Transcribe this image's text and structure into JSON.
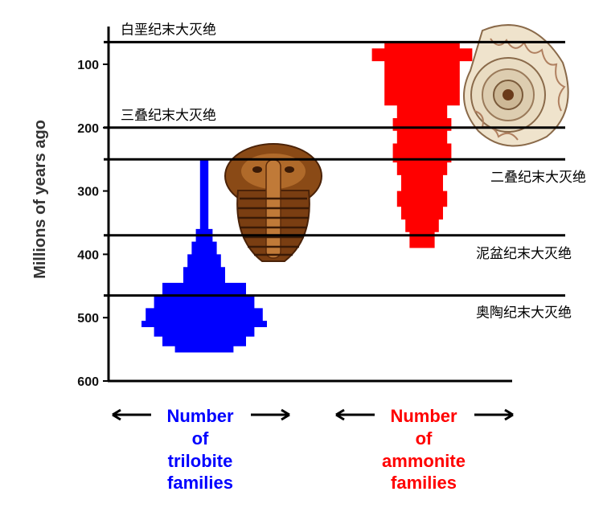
{
  "chart_data": {
    "type": "area",
    "ylabel": "Millions of years ago",
    "y_axis": {
      "ticks": [
        100,
        200,
        300,
        400,
        500,
        600
      ],
      "range": [
        50,
        600
      ],
      "direction": "down"
    },
    "extinction_events": [
      {
        "label": "白垩纪末大灭绝",
        "age_ma": 65
      },
      {
        "label": "三叠纪末大灭绝",
        "age_ma": 200
      },
      {
        "label": "二叠纪末大灭绝",
        "age_ma": 250
      },
      {
        "label": "泥盆纪末大灭绝",
        "age_ma": 370
      },
      {
        "label": "奥陶纪末大灭绝",
        "age_ma": 465
      }
    ],
    "series": [
      {
        "name": "trilobite",
        "color": "#0000ff",
        "caption": [
          "Number",
          "of",
          "trilobite",
          "families"
        ],
        "profile": [
          [
            250,
            1
          ],
          [
            340,
            1
          ],
          [
            360,
            2
          ],
          [
            380,
            3
          ],
          [
            400,
            4
          ],
          [
            420,
            5
          ],
          [
            445,
            10
          ],
          [
            465,
            12
          ],
          [
            485,
            14
          ],
          [
            505,
            15
          ],
          [
            515,
            12
          ],
          [
            530,
            10
          ],
          [
            545,
            7
          ],
          [
            555,
            0
          ]
        ]
      },
      {
        "name": "ammonite",
        "color": "#ff0000",
        "caption": [
          "Number",
          "of",
          "ammonite",
          "families"
        ],
        "profile": [
          [
            65,
            9
          ],
          [
            75,
            12
          ],
          [
            95,
            9
          ],
          [
            165,
            6
          ],
          [
            185,
            7
          ],
          [
            205,
            6
          ],
          [
            225,
            7
          ],
          [
            255,
            6
          ],
          [
            275,
            5
          ],
          [
            300,
            6
          ],
          [
            325,
            5
          ],
          [
            345,
            4
          ],
          [
            365,
            3
          ],
          [
            390,
            0
          ]
        ]
      }
    ],
    "pictures": [
      "trilobite-fossil",
      "ammonite-fossil"
    ]
  }
}
